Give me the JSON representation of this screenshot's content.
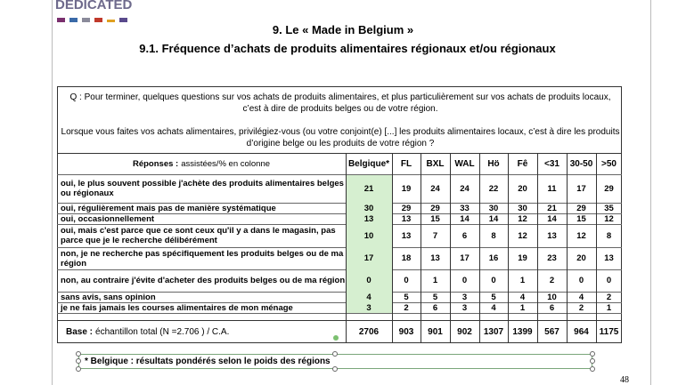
{
  "header": {
    "logo": "DEDICATED",
    "title": "9. Le « Made in Belgium »",
    "subtitle": "9.1.  Fréquence d’achats de produits alimentaires régionaux et/ou régionaux"
  },
  "question": {
    "q1": "Q : Pour terminer, quelques questions sur vos achats de produits alimentaires, et plus particulièrement sur vos achats de produits locaux, c’est à dire de produits belges ou de votre région.",
    "q2": "Lorsque vous faites vos achats alimentaires, privilégiez-vous (ou votre conjoint(e) [...] les produits alimentaires locaux, c’est à dire les produits d’origine belge ou les produits de votre région ?"
  },
  "table": {
    "header_label": "Réponses :",
    "header_note": "assistées/% en colonne",
    "columns": [
      "Belgique*",
      "FL",
      "BXL",
      "WAL",
      "Hö",
      "Fê",
      "<31",
      "30-50",
      ">50"
    ],
    "rows": [
      {
        "label": "oui, le plus souvent possible j'achète des produits alimentaires belges ou régionaux",
        "values": [
          21,
          19,
          24,
          24,
          22,
          20,
          11,
          17,
          29
        ]
      },
      {
        "label": "oui, régulièrement mais pas de manière systématique",
        "values": [
          30,
          29,
          29,
          33,
          30,
          30,
          21,
          29,
          35
        ]
      },
      {
        "label": "oui, occasionnellement",
        "values": [
          13,
          13,
          15,
          14,
          14,
          12,
          14,
          15,
          12
        ]
      },
      {
        "label": "oui, mais c'est parce que ce sont ceux qu'il y a dans le magasin, pas parce que je le recherche délibérément",
        "values": [
          10,
          13,
          7,
          6,
          8,
          12,
          13,
          12,
          8
        ]
      },
      {
        "label": "non, je ne recherche pas spécifiquement les produits belges ou de ma région",
        "values": [
          17,
          18,
          13,
          17,
          16,
          19,
          23,
          20,
          13
        ]
      },
      {
        "label": "non, au contraire j'évite d'acheter des produits belges ou de ma région",
        "values": [
          0,
          0,
          1,
          0,
          0,
          1,
          2,
          0,
          0
        ]
      },
      {
        "label": "sans avis, sans opinion",
        "values": [
          4,
          5,
          5,
          3,
          5,
          4,
          10,
          4,
          2
        ]
      },
      {
        "label": "je ne fais jamais les courses alimentaires de mon ménage",
        "values": [
          3,
          2,
          6,
          3,
          4,
          1,
          6,
          2,
          1
        ]
      }
    ],
    "base_label": "Base :",
    "base_note": "échantillon total (N =2.706 ) / C.A.",
    "base_values": [
      2706,
      903,
      901,
      902,
      1307,
      1399,
      567,
      964,
      1175
    ]
  },
  "footnote": "* Belgique : résultats pondérés selon le poids des régions",
  "page_number": "48"
}
